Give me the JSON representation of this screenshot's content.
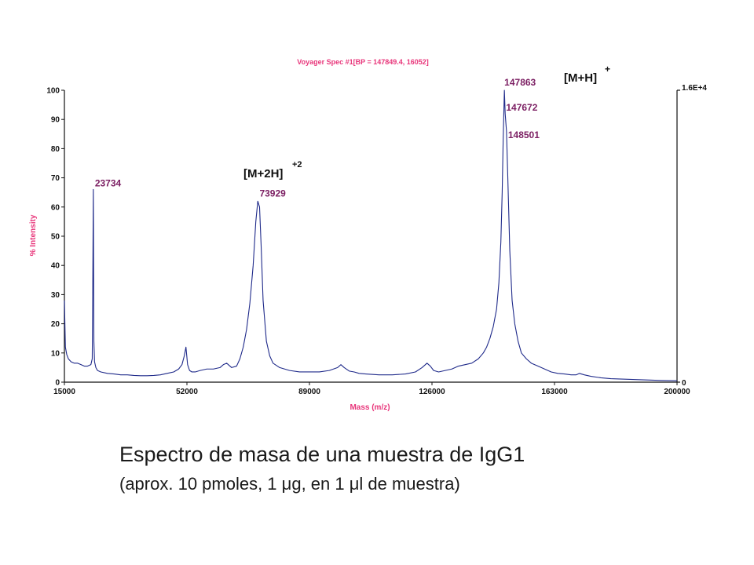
{
  "chart_data": {
    "type": "line",
    "title": "Voyager Spec #1[BP = 147849.4, 16052]",
    "xlabel": "Mass (m/z)",
    "ylabel": "% Intensity",
    "xlim": [
      15000,
      200000
    ],
    "ylim": [
      0,
      100
    ],
    "x_ticks": [
      "15000",
      "52000",
      "89000",
      "126000",
      "163000",
      "200000"
    ],
    "y_ticks": [
      "0",
      "10",
      "20",
      "30",
      "40",
      "50",
      "60",
      "70",
      "80",
      "90",
      "100"
    ],
    "right_axis_top_label": "1.6E+4",
    "right_axis_bottom_label": "0",
    "series": [
      {
        "color": "#1f2a8a",
        "x": [
          15000,
          15300,
          15700,
          16200,
          17000,
          18000,
          19000,
          20000,
          21000,
          22000,
          23000,
          23400,
          23550,
          23734,
          23900,
          24100,
          24500,
          25000,
          26000,
          28000,
          30000,
          32000,
          34000,
          36000,
          38000,
          40000,
          42000,
          44000,
          46000,
          48000,
          49500,
          50500,
          51200,
          51700,
          52200,
          52800,
          53500,
          54500,
          56000,
          58000,
          60000,
          62000,
          63000,
          64000,
          65500,
          67000,
          68000,
          69000,
          70000,
          71000,
          72000,
          72800,
          73400,
          73929,
          74400,
          75000,
          76000,
          77000,
          78000,
          80000,
          83000,
          86000,
          89000,
          92000,
          95000,
          97500,
          98500,
          99500,
          101000,
          102500,
          104000,
          106000,
          110000,
          114000,
          118000,
          121000,
          123000,
          124500,
          125500,
          126500,
          128000,
          130000,
          132000,
          134000,
          136000,
          138000,
          140000,
          141500,
          142500,
          143500,
          144500,
          145500,
          146200,
          146800,
          147200,
          147500,
          147863,
          148100,
          148501,
          148900,
          149500,
          150200,
          151000,
          152000,
          153000,
          154500,
          156000,
          158000,
          160000,
          162000,
          164000,
          166000,
          168000,
          169500,
          170500,
          172000,
          174000,
          177000,
          180000,
          185000,
          190000,
          195000,
          200000
        ],
        "y": [
          28,
          12,
          9.5,
          8,
          7,
          6.5,
          6.5,
          6,
          5.5,
          5.5,
          6,
          8,
          30,
          66,
          14,
          7,
          5,
          4,
          3.5,
          3,
          2.8,
          2.5,
          2.5,
          2.3,
          2.2,
          2.2,
          2.3,
          2.5,
          3,
          3.5,
          4.5,
          6,
          9,
          12,
          6,
          4,
          3.5,
          3.5,
          4,
          4.5,
          4.5,
          5,
          6,
          6.5,
          5,
          5.5,
          8,
          12,
          18,
          27,
          40,
          55,
          62,
          60,
          47,
          28,
          14,
          9,
          6.5,
          5,
          4,
          3.5,
          3.5,
          3.5,
          4,
          5,
          6,
          5,
          3.8,
          3.5,
          3,
          2.8,
          2.5,
          2.5,
          2.8,
          3.5,
          5,
          6.5,
          5.5,
          4,
          3.5,
          4,
          4.5,
          5.5,
          6,
          6.5,
          8,
          10,
          12,
          15,
          19,
          25,
          34,
          48,
          65,
          83,
          100,
          92,
          86,
          70,
          45,
          28,
          20,
          14,
          10,
          8,
          6.5,
          5.5,
          4.5,
          3.5,
          3,
          2.8,
          2.5,
          2.5,
          3,
          2.5,
          2,
          1.5,
          1.2,
          1,
          0.8,
          0.6,
          0.5
        ]
      }
    ],
    "annotations": [
      {
        "text": "23734",
        "x": 23734,
        "y": 66
      },
      {
        "text": "73929",
        "x": 73929,
        "y": 62
      },
      {
        "text": "147863",
        "x": 147863,
        "y": 100
      },
      {
        "text": "147672",
        "x": 147672,
        "y": 92
      },
      {
        "text": "148501",
        "x": 148501,
        "y": 83
      }
    ],
    "ion_labels": [
      {
        "text": "[M+2H]",
        "superscript": "+2"
      },
      {
        "text": "[M+H]",
        "superscript": "+"
      }
    ],
    "grid": false,
    "colors": {
      "trace": "#1f2a8a",
      "title": "#e8357a",
      "axis_titles": "#e8357a",
      "peak_labels": "#7b1e62",
      "axis": "#111111"
    }
  },
  "caption": {
    "title": "Espectro de masa de una muestra de IgG1",
    "subtitle": "(aprox. 10 pmoles, 1 μg, en 1 μl de muestra)"
  }
}
